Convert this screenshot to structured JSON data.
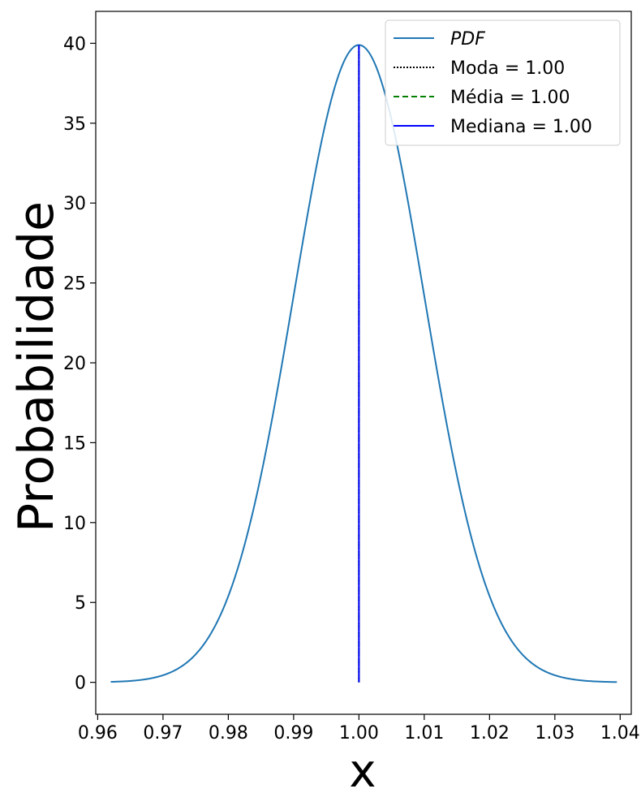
{
  "chart_data": {
    "type": "line",
    "title": "",
    "xlabel": "x",
    "ylabel": "Probabilidade",
    "xlim": [
      0.9597,
      1.0417
    ],
    "ylim": [
      -2.0,
      42.0
    ],
    "xticks": [
      0.96,
      0.97,
      0.98,
      0.99,
      1.0,
      1.01,
      1.02,
      1.03,
      1.04
    ],
    "xtick_labels": [
      "0.96",
      "0.97",
      "0.98",
      "0.99",
      "1.00",
      "1.01",
      "1.02",
      "1.03",
      "1.04"
    ],
    "yticks": [
      0,
      5,
      10,
      15,
      20,
      25,
      30,
      35,
      40
    ],
    "ytick_labels": [
      "0",
      "5",
      "10",
      "15",
      "20",
      "25",
      "30",
      "35",
      "40"
    ],
    "grid": false,
    "legend_position": "top-right",
    "pdf": {
      "mean": 1.0,
      "std": 0.01,
      "x_min": 0.962,
      "x_max": 1.0395,
      "color": "#1f77b4"
    },
    "series": [
      {
        "name": "PDF",
        "kind": "curve",
        "color": "#1f77b4",
        "style": "solid",
        "italic": true
      },
      {
        "name": "Moda = 1.00",
        "kind": "vline",
        "x": 1.0,
        "y_range": [
          0,
          39.89
        ],
        "color": "#000000",
        "style": "dotted"
      },
      {
        "name": "Média = 1.00",
        "kind": "vline",
        "x": 1.0,
        "y_range": [
          0,
          39.89
        ],
        "color": "#008000",
        "style": "dashed"
      },
      {
        "name": "Mediana = 1.00",
        "kind": "vline",
        "x": 1.0,
        "y_range": [
          0,
          39.89
        ],
        "color": "#0000ff",
        "style": "solid"
      }
    ]
  }
}
